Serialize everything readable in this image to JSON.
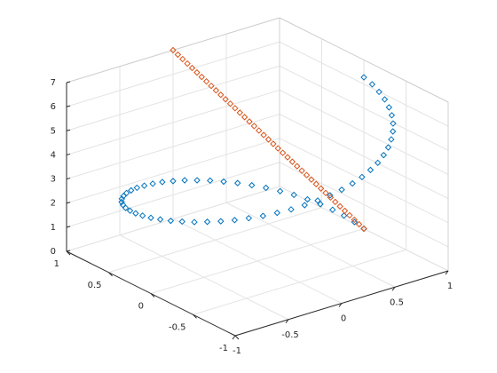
{
  "chart_data": {
    "type": "scatter3",
    "xlim": [
      -1,
      1
    ],
    "xticks": [
      -1,
      -0.5,
      0,
      0.5,
      1
    ],
    "ylim": [
      -1,
      1
    ],
    "yticks": [
      -1,
      -0.5,
      0,
      0.5,
      1
    ],
    "zlim": [
      0,
      7
    ],
    "zticks": [
      0,
      1,
      2,
      3,
      4,
      5,
      6,
      7
    ],
    "grid": true,
    "marker": "diamond",
    "series": [
      {
        "color": "#0072BD",
        "x": [
          1,
          0.995,
          0.978,
          0.951,
          0.914,
          0.866,
          0.809,
          0.743,
          0.669,
          0.588,
          0.5,
          0.407,
          0.309,
          0.208,
          0.105,
          0,
          -0.105,
          -0.208,
          -0.309,
          -0.407,
          -0.5,
          -0.588,
          -0.669,
          -0.743,
          -0.809,
          -0.866,
          -0.914,
          -0.951,
          -0.978,
          -0.995,
          -1,
          -0.995,
          -0.978,
          -0.951,
          -0.914,
          -0.866,
          -0.809,
          -0.743,
          -0.669,
          -0.588,
          -0.5,
          -0.407,
          -0.309,
          -0.208,
          -0.105,
          0,
          0.105,
          0.208,
          0.309,
          0.407,
          0.5,
          0.588,
          0.669,
          0.743,
          0.809,
          0.866,
          0.914,
          0.951,
          0.978,
          0.995,
          1
        ],
        "y": [
          0,
          0.105,
          0.208,
          0.309,
          0.407,
          0.5,
          0.588,
          0.669,
          0.743,
          0.809,
          0.866,
          0.914,
          0.951,
          0.978,
          0.995,
          1,
          0.995,
          0.978,
          0.951,
          0.914,
          0.866,
          0.809,
          0.743,
          0.669,
          0.588,
          0.5,
          0.407,
          0.309,
          0.208,
          0.105,
          0,
          -0.105,
          -0.208,
          -0.309,
          -0.407,
          -0.5,
          -0.588,
          -0.669,
          -0.743,
          -0.809,
          -0.866,
          -0.914,
          -0.951,
          -0.978,
          -0.995,
          -1,
          -0.995,
          -0.978,
          -0.951,
          -0.914,
          -0.866,
          -0.809,
          -0.743,
          -0.669,
          -0.588,
          -0.5,
          -0.407,
          -0.309,
          -0.208,
          -0.105,
          0
        ],
        "z": [
          0,
          0.1,
          0.21,
          0.31,
          0.42,
          0.52,
          0.63,
          0.73,
          0.84,
          0.94,
          1.05,
          1.15,
          1.26,
          1.36,
          1.47,
          1.57,
          1.68,
          1.78,
          1.88,
          1.99,
          2.09,
          2.2,
          2.3,
          2.41,
          2.51,
          2.62,
          2.72,
          2.83,
          2.93,
          3.04,
          3.14,
          3.25,
          3.35,
          3.46,
          3.56,
          3.67,
          3.77,
          3.87,
          3.98,
          4.08,
          4.19,
          4.29,
          4.4,
          4.5,
          4.61,
          4.71,
          4.82,
          4.92,
          5.03,
          5.13,
          5.24,
          5.34,
          5.45,
          5.55,
          5.65,
          5.76,
          5.86,
          5.97,
          6.07,
          6.18,
          6.28
        ]
      },
      {
        "color": "#D95319",
        "x": [
          0,
          0.025,
          0.05,
          0.075,
          0.1,
          0.125,
          0.15,
          0.175,
          0.2,
          0.225,
          0.25,
          0.275,
          0.3,
          0.325,
          0.35,
          0.375,
          0.4,
          0.425,
          0.45,
          0.475,
          0.5,
          0.525,
          0.55,
          0.575,
          0.6,
          0.625,
          0.65,
          0.675,
          0.7,
          0.725,
          0.75,
          0.775,
          0.8,
          0.825,
          0.85,
          0.875,
          0.9,
          0.925,
          0.95,
          0.975,
          1
        ],
        "y": [
          1,
          0.975,
          0.95,
          0.925,
          0.9,
          0.875,
          0.85,
          0.825,
          0.8,
          0.775,
          0.75,
          0.725,
          0.7,
          0.675,
          0.65,
          0.625,
          0.6,
          0.575,
          0.55,
          0.525,
          0.5,
          0.475,
          0.45,
          0.425,
          0.4,
          0.375,
          0.35,
          0.325,
          0.3,
          0.275,
          0.25,
          0.225,
          0.2,
          0.175,
          0.15,
          0.125,
          0.1,
          0.075,
          0.05,
          0.025,
          0
        ],
        "z": [
          7,
          6.825,
          6.65,
          6.475,
          6.3,
          6.125,
          5.95,
          5.775,
          5.6,
          5.425,
          5.25,
          5.075,
          4.9,
          4.725,
          4.55,
          4.375,
          4.2,
          4.025,
          3.85,
          3.675,
          3.5,
          3.325,
          3.15,
          2.975,
          2.8,
          2.625,
          2.45,
          2.275,
          2.1,
          1.925,
          1.75,
          1.575,
          1.4,
          1.225,
          1.05,
          0.875,
          0.7,
          0.525,
          0.35,
          0.175,
          0
        ]
      }
    ]
  }
}
